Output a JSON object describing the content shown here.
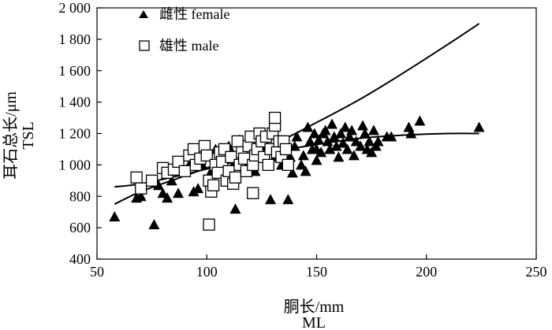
{
  "chart_data": {
    "type": "scatter",
    "x_axis": {
      "label_cn": "胴长/mm",
      "label_en": "ML",
      "range": [
        50,
        250
      ],
      "ticks": [
        50,
        100,
        150,
        200,
        250
      ],
      "tick_labels": [
        "50",
        "100",
        "150",
        "200",
        "250"
      ]
    },
    "y_axis": {
      "label_cn": "耳石总长/μm",
      "label_en": "TSL",
      "range": [
        400,
        2000
      ],
      "ticks": [
        400,
        600,
        800,
        1000,
        1200,
        1400,
        1600,
        1800,
        2000
      ],
      "tick_labels": [
        "400",
        "600",
        "800",
        "1 000",
        "1 200",
        "1 400",
        "1 600",
        "1 800",
        "2 000"
      ]
    },
    "grid": false,
    "legend_position": "top-left",
    "series": [
      {
        "name": "雌性 female",
        "marker": "filled-triangle",
        "color": "#000000",
        "points": [
          [
            58,
            670
          ],
          [
            68,
            790
          ],
          [
            70,
            800
          ],
          [
            76,
            620
          ],
          [
            78,
            870
          ],
          [
            80,
            820
          ],
          [
            82,
            790
          ],
          [
            84,
            900
          ],
          [
            87,
            820
          ],
          [
            90,
            960
          ],
          [
            92,
            1000
          ],
          [
            94,
            830
          ],
          [
            96,
            850
          ],
          [
            98,
            1000
          ],
          [
            100,
            1080
          ],
          [
            102,
            960
          ],
          [
            104,
            1100
          ],
          [
            106,
            1030
          ],
          [
            108,
            1080
          ],
          [
            110,
            1120
          ],
          [
            112,
            1000
          ],
          [
            113,
            720
          ],
          [
            115,
            1160
          ],
          [
            117,
            1000
          ],
          [
            120,
            1020
          ],
          [
            122,
            960
          ],
          [
            124,
            1050
          ],
          [
            126,
            1120
          ],
          [
            128,
            1100
          ],
          [
            129,
            780
          ],
          [
            131,
            1050
          ],
          [
            133,
            1120
          ],
          [
            134,
            1000
          ],
          [
            136,
            1150
          ],
          [
            137,
            780
          ],
          [
            138,
            1050
          ],
          [
            139,
            950
          ],
          [
            140,
            1120
          ],
          [
            141,
            1180
          ],
          [
            143,
            1000
          ],
          [
            144,
            1060
          ],
          [
            145,
            960
          ],
          [
            146,
            1240
          ],
          [
            147,
            1150
          ],
          [
            148,
            1100
          ],
          [
            149,
            1200
          ],
          [
            150,
            1100
          ],
          [
            150,
            1030
          ],
          [
            151,
            1160
          ],
          [
            152,
            1080
          ],
          [
            153,
            1200
          ],
          [
            154,
            1220
          ],
          [
            155,
            1150
          ],
          [
            156,
            1100
          ],
          [
            157,
            1260
          ],
          [
            158,
            1180
          ],
          [
            159,
            1120
          ],
          [
            160,
            1050
          ],
          [
            161,
            1200
          ],
          [
            162,
            1140
          ],
          [
            163,
            1240
          ],
          [
            164,
            1100
          ],
          [
            165,
            1180
          ],
          [
            166,
            1220
          ],
          [
            167,
            1060
          ],
          [
            168,
            1150
          ],
          [
            170,
            1120
          ],
          [
            171,
            1250
          ],
          [
            172,
            1200
          ],
          [
            173,
            1100
          ],
          [
            174,
            1150
          ],
          [
            175,
            1080
          ],
          [
            176,
            1220
          ],
          [
            177,
            1120
          ],
          [
            178,
            1150
          ],
          [
            182,
            1180
          ],
          [
            184,
            1180
          ],
          [
            192,
            1240
          ],
          [
            193,
            1200
          ],
          [
            197,
            1280
          ],
          [
            224,
            1240
          ]
        ]
      },
      {
        "name": "雄性 male",
        "marker": "open-square",
        "color": "#000000",
        "points": [
          [
            68,
            920
          ],
          [
            70,
            850
          ],
          [
            75,
            900
          ],
          [
            80,
            980
          ],
          [
            82,
            950
          ],
          [
            85,
            970
          ],
          [
            87,
            1020
          ],
          [
            90,
            960
          ],
          [
            92,
            1060
          ],
          [
            94,
            1100
          ],
          [
            95,
            1000
          ],
          [
            97,
            1040
          ],
          [
            99,
            1120
          ],
          [
            100,
            1060
          ],
          [
            101,
            900
          ],
          [
            101,
            620
          ],
          [
            102,
            830
          ],
          [
            103,
            870
          ],
          [
            104,
            1000
          ],
          [
            105,
            950
          ],
          [
            106,
            1080
          ],
          [
            107,
            1020
          ],
          [
            108,
            1100
          ],
          [
            109,
            900
          ],
          [
            110,
            960
          ],
          [
            111,
            1050
          ],
          [
            112,
            880
          ],
          [
            113,
            920
          ],
          [
            114,
            1150
          ],
          [
            115,
            1000
          ],
          [
            116,
            1080
          ],
          [
            117,
            1040
          ],
          [
            118,
            960
          ],
          [
            119,
            1120
          ],
          [
            120,
            1180
          ],
          [
            121,
            1000
          ],
          [
            121,
            820
          ],
          [
            122,
            1060
          ],
          [
            123,
            1100
          ],
          [
            124,
            1200
          ],
          [
            125,
            1150
          ],
          [
            126,
            1050
          ],
          [
            127,
            1180
          ],
          [
            128,
            1000
          ],
          [
            129,
            1100
          ],
          [
            130,
            1200
          ],
          [
            131,
            1250
          ],
          [
            131,
            1300
          ],
          [
            132,
            1080
          ],
          [
            133,
            1150
          ],
          [
            134,
            1050
          ],
          [
            135,
            1150
          ],
          [
            136,
            1100
          ],
          [
            137,
            1000
          ]
        ]
      }
    ],
    "fitted_curves": [
      {
        "series": "雄性 male",
        "points": [
          [
            58,
            750
          ],
          [
            70,
            830
          ],
          [
            90,
            930
          ],
          [
            110,
            1030
          ],
          [
            130,
            1130
          ],
          [
            150,
            1270
          ],
          [
            170,
            1420
          ],
          [
            190,
            1590
          ],
          [
            210,
            1770
          ],
          [
            224,
            1900
          ]
        ]
      },
      {
        "series": "雌性 female",
        "points": [
          [
            58,
            860
          ],
          [
            70,
            880
          ],
          [
            90,
            940
          ],
          [
            110,
            1010
          ],
          [
            130,
            1080
          ],
          [
            150,
            1130
          ],
          [
            170,
            1170
          ],
          [
            190,
            1190
          ],
          [
            210,
            1200
          ],
          [
            224,
            1200
          ]
        ]
      }
    ]
  }
}
